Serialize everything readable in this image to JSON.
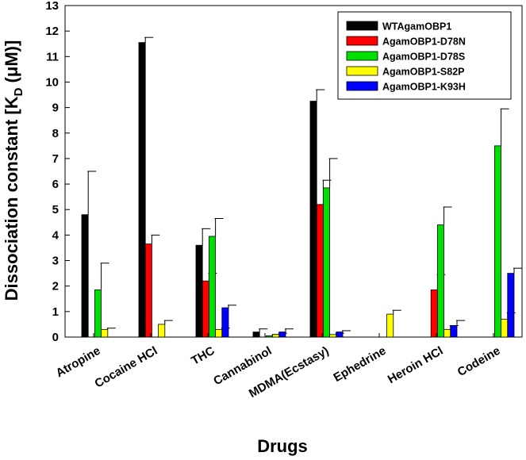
{
  "chart_data": {
    "type": "bar",
    "title": "",
    "xlabel": "Drugs",
    "ylabel": "Dissociation constant [K",
    "ylabel_sub": "D",
    "ylabel_unit": " (μM)]",
    "ylim": [
      0,
      13
    ],
    "yticks": [
      0,
      1,
      2,
      3,
      4,
      5,
      6,
      7,
      8,
      9,
      10,
      11,
      12,
      13
    ],
    "legend_position": "top-right",
    "categories": [
      "Atropine",
      "Cocaine HCl",
      "THC",
      "Cannabinol",
      "MDMA(Ecstasy)",
      "Ephedrine",
      "Heroin HCl",
      "Codeine"
    ],
    "series": [
      {
        "name": "WTAgamOBP1",
        "color": "#000000",
        "values": [
          4.8,
          11.55,
          3.6,
          0.2,
          9.25,
          null,
          null,
          null
        ],
        "errors": [
          1.7,
          0.2,
          0.65,
          0.12,
          0.45,
          null,
          null,
          null
        ]
      },
      {
        "name": "AgamOBP1-D78N",
        "color": "#ff0000",
        "values": [
          null,
          3.65,
          2.2,
          null,
          5.2,
          null,
          1.85,
          null
        ],
        "errors": [
          null,
          0.35,
          0.3,
          null,
          0.95,
          null,
          0.6,
          null
        ]
      },
      {
        "name": "AgamOBP1-D78S",
        "color": "#00e000",
        "values": [
          1.85,
          null,
          3.95,
          0.05,
          5.85,
          null,
          4.4,
          7.5
        ],
        "errors": [
          1.05,
          null,
          0.7,
          0.05,
          1.15,
          null,
          0.7,
          1.45
        ]
      },
      {
        "name": "AgamOBP1-S82P",
        "color": "#ffff00",
        "values": [
          0.3,
          0.5,
          0.3,
          0.1,
          0.1,
          0.9,
          0.3,
          0.7
        ],
        "errors": [
          0.05,
          0.15,
          0.05,
          0.05,
          0.05,
          0.15,
          0.15,
          0.25
        ]
      },
      {
        "name": "AgamOBP1-K93H",
        "color": "#0000ff",
        "values": [
          null,
          null,
          1.15,
          0.2,
          0.2,
          null,
          0.45,
          2.5
        ],
        "errors": [
          null,
          null,
          0.1,
          0.12,
          0.05,
          null,
          0.2,
          0.2
        ]
      }
    ]
  }
}
